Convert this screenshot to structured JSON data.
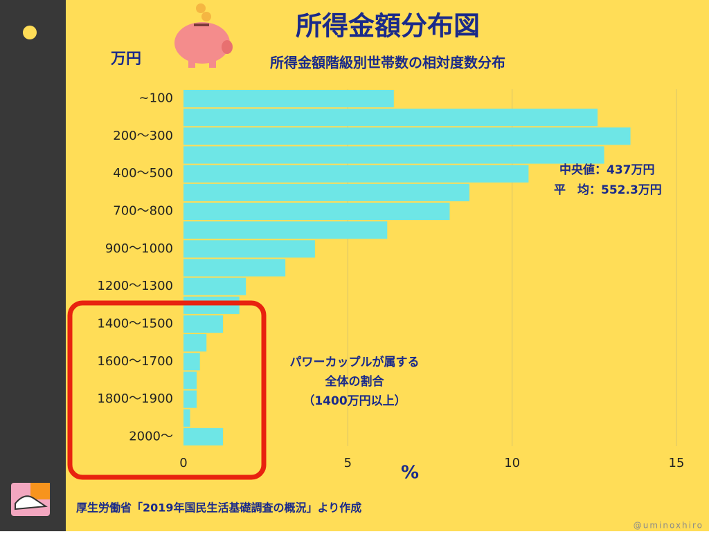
{
  "chart_data": {
    "type": "bar",
    "orientation": "horizontal",
    "title": "所得金額分布図",
    "subtitle": "所得金額階級別世帯数の相対度数分布",
    "y_axis_label": "万円",
    "x_axis_label": "%",
    "categories": [
      "~100",
      null,
      "200〜300",
      null,
      "400〜500",
      null,
      "700〜800",
      null,
      "900〜1000",
      null,
      "1200〜1300",
      null,
      "1400〜1500",
      null,
      "1600〜1700",
      null,
      "1800〜1900",
      null,
      "2000〜"
    ],
    "values": [
      6.4,
      12.6,
      13.6,
      12.8,
      10.5,
      8.7,
      8.1,
      6.2,
      4.0,
      3.1,
      1.9,
      1.7,
      1.2,
      0.7,
      0.5,
      0.4,
      0.4,
      0.2,
      1.2
    ],
    "color": "#6ee6e6",
    "xlim": [
      0,
      15
    ],
    "xticks": [
      0,
      5,
      10,
      15
    ],
    "grid": true,
    "annotations": [
      "中央値：437万円",
      "平　均：552.3万円"
    ],
    "highlight_note": [
      "パワーカップルが属する",
      "全体の割合",
      "（1400万円以上）"
    ],
    "source": "厚生労働省「2019年国民生活基礎調査の概況」より作成",
    "credit": "@uminoxhiro"
  }
}
